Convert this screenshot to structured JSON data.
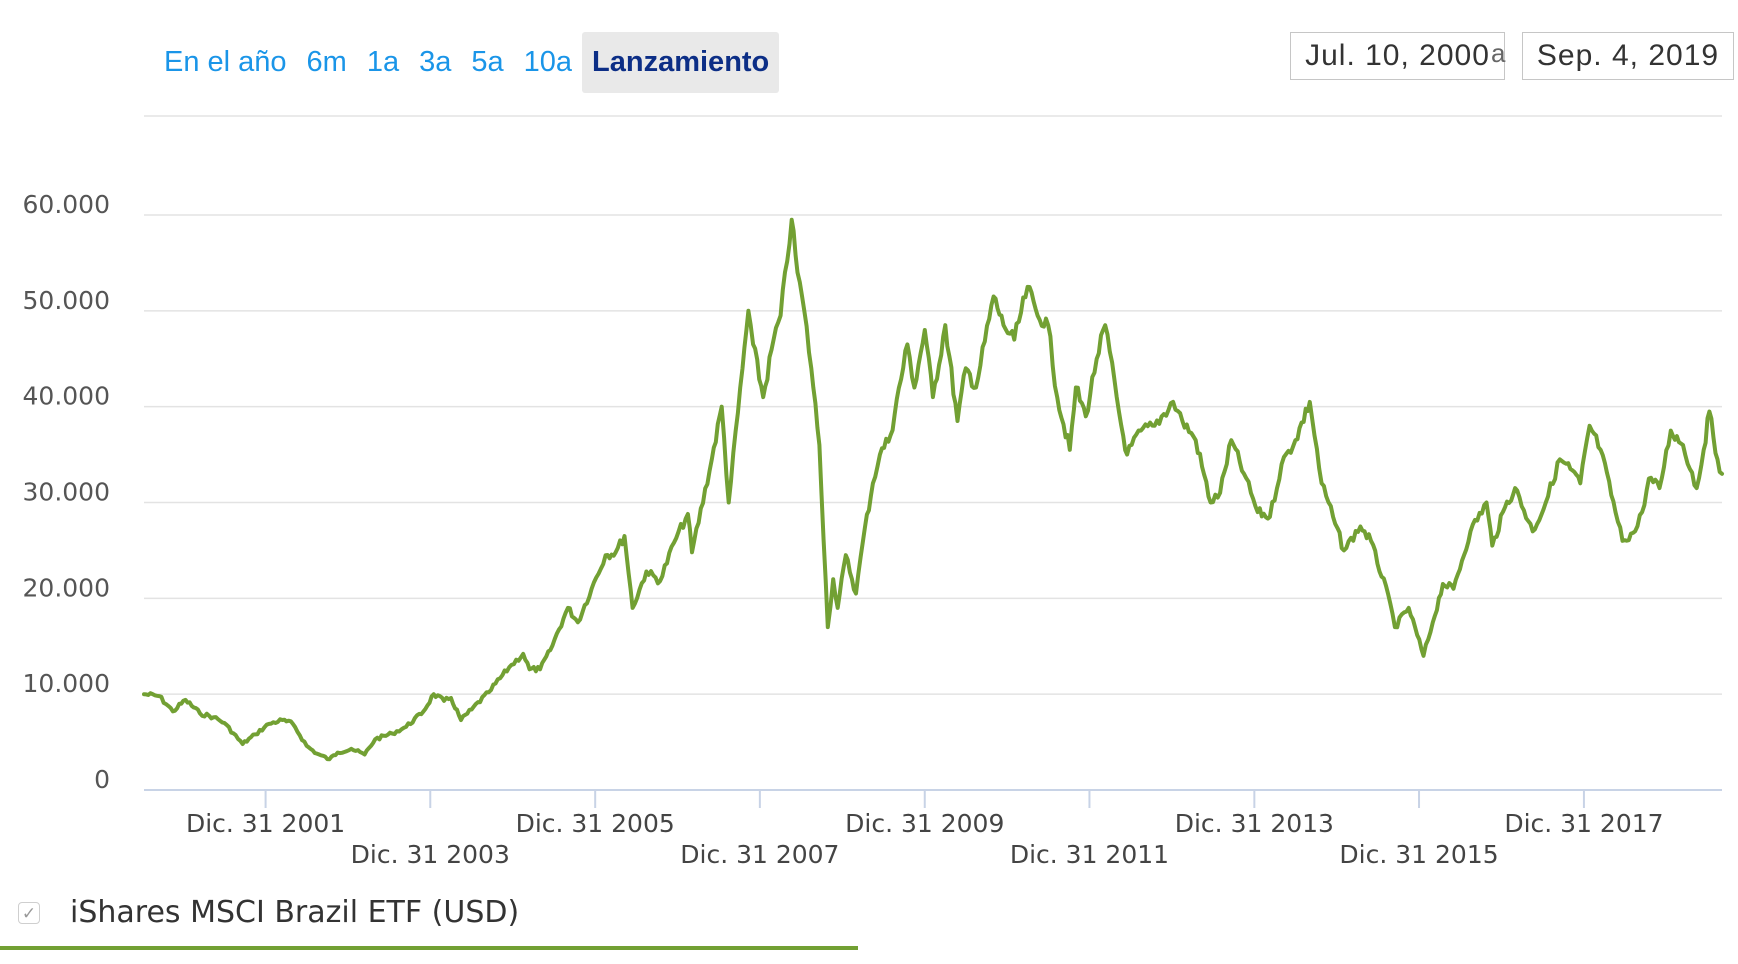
{
  "range_selector": {
    "buttons": [
      "En el año",
      "6m",
      "1a",
      "3a",
      "5a",
      "10a",
      "Lanzamiento"
    ],
    "active": "Lanzamiento"
  },
  "date_range": {
    "from": "Jul. 10, 2000",
    "separator": "a",
    "to": "Sep. 4, 2019"
  },
  "legend": {
    "checked": true,
    "check_glyph": "✓",
    "label": "iShares MSCI Brazil ETF (USD)"
  },
  "colors": {
    "series": "#72a033",
    "grid": "#e3e3e3",
    "axis_text": "#555555",
    "active_button_text": "#0c2e86",
    "button_text": "#1a95e8"
  },
  "chart_data": {
    "type": "line",
    "title": "",
    "xlabel": "",
    "ylabel": "",
    "x_range": [
      "2000-07-10",
      "2019-09-04"
    ],
    "ylim": [
      0,
      60000
    ],
    "y_ticks": [
      0,
      10000,
      20000,
      30000,
      40000,
      50000,
      60000
    ],
    "y_tick_labels": [
      "0",
      "10.000",
      "20.000",
      "30.000",
      "40.000",
      "50.000",
      "60.000"
    ],
    "x_ticks": [
      {
        "date": "2001-12-31",
        "label": "Dic. 31 2001",
        "row": 1
      },
      {
        "date": "2003-12-31",
        "label": "Dic. 31 2003",
        "row": 2
      },
      {
        "date": "2005-12-31",
        "label": "Dic. 31 2005",
        "row": 1
      },
      {
        "date": "2007-12-31",
        "label": "Dic. 31 2007",
        "row": 2
      },
      {
        "date": "2009-12-31",
        "label": "Dic. 31 2009",
        "row": 1
      },
      {
        "date": "2011-12-31",
        "label": "Dic. 31 2011",
        "row": 2
      },
      {
        "date": "2013-12-31",
        "label": "Dic. 31 2013",
        "row": 1
      },
      {
        "date": "2015-12-31",
        "label": "Dic. 31 2015",
        "row": 2
      },
      {
        "date": "2017-12-31",
        "label": "Dic. 31 2017",
        "row": 1
      }
    ],
    "grid": true,
    "legend_position": "bottom-left",
    "series": [
      {
        "name": "iShares MSCI Brazil ETF (USD)",
        "color": "#72a033",
        "points": [
          [
            "2000-07-10",
            10000
          ],
          [
            "2000-09-15",
            9800
          ],
          [
            "2000-11-15",
            8200
          ],
          [
            "2001-01-10",
            9400
          ],
          [
            "2001-03-15",
            8000
          ],
          [
            "2001-05-15",
            7600
          ],
          [
            "2001-07-01",
            7000
          ],
          [
            "2001-09-20",
            4800
          ],
          [
            "2001-11-15",
            5800
          ],
          [
            "2002-01-15",
            6900
          ],
          [
            "2002-03-15",
            7300
          ],
          [
            "2002-05-01",
            6900
          ],
          [
            "2002-07-01",
            4600
          ],
          [
            "2002-08-15",
            3800
          ],
          [
            "2002-10-10",
            3200
          ],
          [
            "2002-11-15",
            3900
          ],
          [
            "2003-01-15",
            4300
          ],
          [
            "2003-03-15",
            3700
          ],
          [
            "2003-05-01",
            5300
          ],
          [
            "2003-07-15",
            5900
          ],
          [
            "2003-09-15",
            6600
          ],
          [
            "2003-12-01",
            8200
          ],
          [
            "2004-01-15",
            10000
          ],
          [
            "2004-03-01",
            9300
          ],
          [
            "2004-04-01",
            9600
          ],
          [
            "2004-05-15",
            7300
          ],
          [
            "2004-07-01",
            8400
          ],
          [
            "2004-09-15",
            10200
          ],
          [
            "2004-12-15",
            12800
          ],
          [
            "2005-02-15",
            14200
          ],
          [
            "2005-03-15",
            12600
          ],
          [
            "2005-05-01",
            12600
          ],
          [
            "2005-06-15",
            14600
          ],
          [
            "2005-09-01",
            19000
          ],
          [
            "2005-10-15",
            17500
          ],
          [
            "2005-12-15",
            21000
          ],
          [
            "2006-02-15",
            24500
          ],
          [
            "2006-04-01",
            24800
          ],
          [
            "2006-05-10",
            26500
          ],
          [
            "2006-06-15",
            19000
          ],
          [
            "2006-08-15",
            22800
          ],
          [
            "2006-10-15",
            21800
          ],
          [
            "2006-12-15",
            25800
          ],
          [
            "2007-02-15",
            28800
          ],
          [
            "2007-03-05",
            24800
          ],
          [
            "2007-06-01",
            34500
          ],
          [
            "2007-07-15",
            40000
          ],
          [
            "2007-08-15",
            30000
          ],
          [
            "2007-10-15",
            44000
          ],
          [
            "2007-11-10",
            50000
          ],
          [
            "2007-12-01",
            46500
          ],
          [
            "2008-01-15",
            41000
          ],
          [
            "2008-03-01",
            47000
          ],
          [
            "2008-04-01",
            49500
          ],
          [
            "2008-05-20",
            59500
          ],
          [
            "2008-06-15",
            54000
          ],
          [
            "2008-07-15",
            50000
          ],
          [
            "2008-08-15",
            44000
          ],
          [
            "2008-09-20",
            36000
          ],
          [
            "2008-10-27",
            17000
          ],
          [
            "2008-11-20",
            22000
          ],
          [
            "2008-12-10",
            19000
          ],
          [
            "2009-01-15",
            24500
          ],
          [
            "2009-03-01",
            20500
          ],
          [
            "2009-04-01",
            26000
          ],
          [
            "2009-05-15",
            32000
          ],
          [
            "2009-06-15",
            35000
          ],
          [
            "2009-08-01",
            37000
          ],
          [
            "2009-10-15",
            46500
          ],
          [
            "2009-11-15",
            42000
          ],
          [
            "2009-12-31",
            48000
          ],
          [
            "2010-02-05",
            41000
          ],
          [
            "2010-04-01",
            48500
          ],
          [
            "2010-05-25",
            38500
          ],
          [
            "2010-07-01",
            44000
          ],
          [
            "2010-08-15",
            42000
          ],
          [
            "2010-11-01",
            51500
          ],
          [
            "2010-12-15",
            48500
          ],
          [
            "2011-02-01",
            47000
          ],
          [
            "2011-04-01",
            52500
          ],
          [
            "2011-05-15",
            49500
          ],
          [
            "2011-07-01",
            48500
          ],
          [
            "2011-08-10",
            41000
          ],
          [
            "2011-10-05",
            35500
          ],
          [
            "2011-11-01",
            42000
          ],
          [
            "2011-12-15",
            39000
          ],
          [
            "2012-02-01",
            45000
          ],
          [
            "2012-03-10",
            48500
          ],
          [
            "2012-05-20",
            38000
          ],
          [
            "2012-06-15",
            35000
          ],
          [
            "2012-08-15",
            37500
          ],
          [
            "2012-10-15",
            38000
          ],
          [
            "2013-01-05",
            40500
          ],
          [
            "2013-02-15",
            38500
          ],
          [
            "2013-04-15",
            36500
          ],
          [
            "2013-06-20",
            30000
          ],
          [
            "2013-08-01",
            31000
          ],
          [
            "2013-09-20",
            36500
          ],
          [
            "2013-11-15",
            33000
          ],
          [
            "2014-01-15",
            29000
          ],
          [
            "2014-03-10",
            28500
          ],
          [
            "2014-05-01",
            34000
          ],
          [
            "2014-07-01",
            36500
          ],
          [
            "2014-09-03",
            40500
          ],
          [
            "2014-10-25",
            32000
          ],
          [
            "2014-12-15",
            28500
          ],
          [
            "2015-02-01",
            25000
          ],
          [
            "2015-04-15",
            27500
          ],
          [
            "2015-06-01",
            26000
          ],
          [
            "2015-08-25",
            19500
          ],
          [
            "2015-09-15",
            17000
          ],
          [
            "2015-11-15",
            19000
          ],
          [
            "2016-01-20",
            14000
          ],
          [
            "2016-03-01",
            17500
          ],
          [
            "2016-04-15",
            21500
          ],
          [
            "2016-06-01",
            21000
          ],
          [
            "2016-08-15",
            27000
          ],
          [
            "2016-10-25",
            30000
          ],
          [
            "2016-11-20",
            25500
          ],
          [
            "2017-01-15",
            29500
          ],
          [
            "2017-03-01",
            31500
          ],
          [
            "2017-05-18",
            27000
          ],
          [
            "2017-07-15",
            30000
          ],
          [
            "2017-09-15",
            34500
          ],
          [
            "2017-11-01",
            33500
          ],
          [
            "2017-12-15",
            32000
          ],
          [
            "2018-01-25",
            38000
          ],
          [
            "2018-03-15",
            35500
          ],
          [
            "2018-05-20",
            29000
          ],
          [
            "2018-06-20",
            26000
          ],
          [
            "2018-08-15",
            27000
          ],
          [
            "2018-09-15",
            29000
          ],
          [
            "2018-10-15",
            32500
          ],
          [
            "2018-12-01",
            31500
          ],
          [
            "2019-01-20",
            37500
          ],
          [
            "2019-03-15",
            36000
          ],
          [
            "2019-05-15",
            31500
          ],
          [
            "2019-06-15",
            35500
          ],
          [
            "2019-07-10",
            39500
          ],
          [
            "2019-08-15",
            34500
          ],
          [
            "2019-09-04",
            33000
          ]
        ]
      }
    ]
  }
}
